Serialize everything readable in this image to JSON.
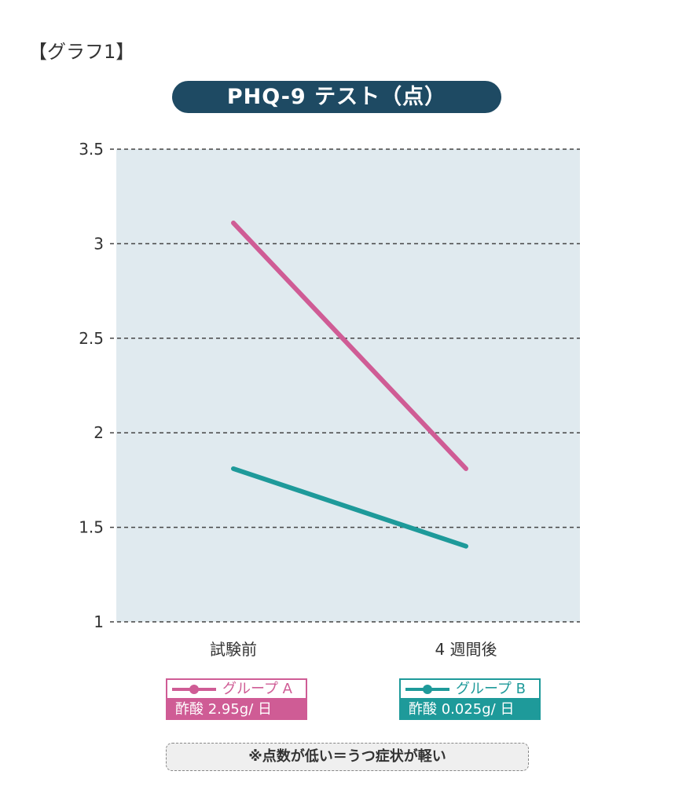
{
  "header": {
    "graph_label": "【グラフ1】",
    "title": "PHQ-9 テスト（点）"
  },
  "legend": {
    "a": {
      "name": "グループ A",
      "dose": "酢酸 2.95g/ 日",
      "color": "#cf5c95"
    },
    "b": {
      "name": "グループ B",
      "dose": "酢酸 0.025g/ 日",
      "color": "#1e9a9a"
    }
  },
  "note": "※点数が低い＝うつ症状が軽い",
  "colors": {
    "plot_background": "#e0eaef",
    "grid": "#444444",
    "title_background": "#1e4a63"
  },
  "chart_data": {
    "type": "line",
    "title": "PHQ-9 テスト（点）",
    "categories": [
      "試験前",
      "4 週間後"
    ],
    "y_ticks": [
      "3.5",
      "3",
      "2.5",
      "2",
      "1.5",
      "1"
    ],
    "ylim": [
      1,
      3.5
    ],
    "grid": true,
    "grid_style": "dashed horizontal",
    "legend_position": "bottom",
    "series": [
      {
        "name": "グループ A",
        "values": [
          3.11,
          1.81
        ],
        "color": "#cf5c95"
      },
      {
        "name": "グループ B",
        "values": [
          1.81,
          1.4
        ],
        "color": "#1e9a9a"
      }
    ]
  }
}
